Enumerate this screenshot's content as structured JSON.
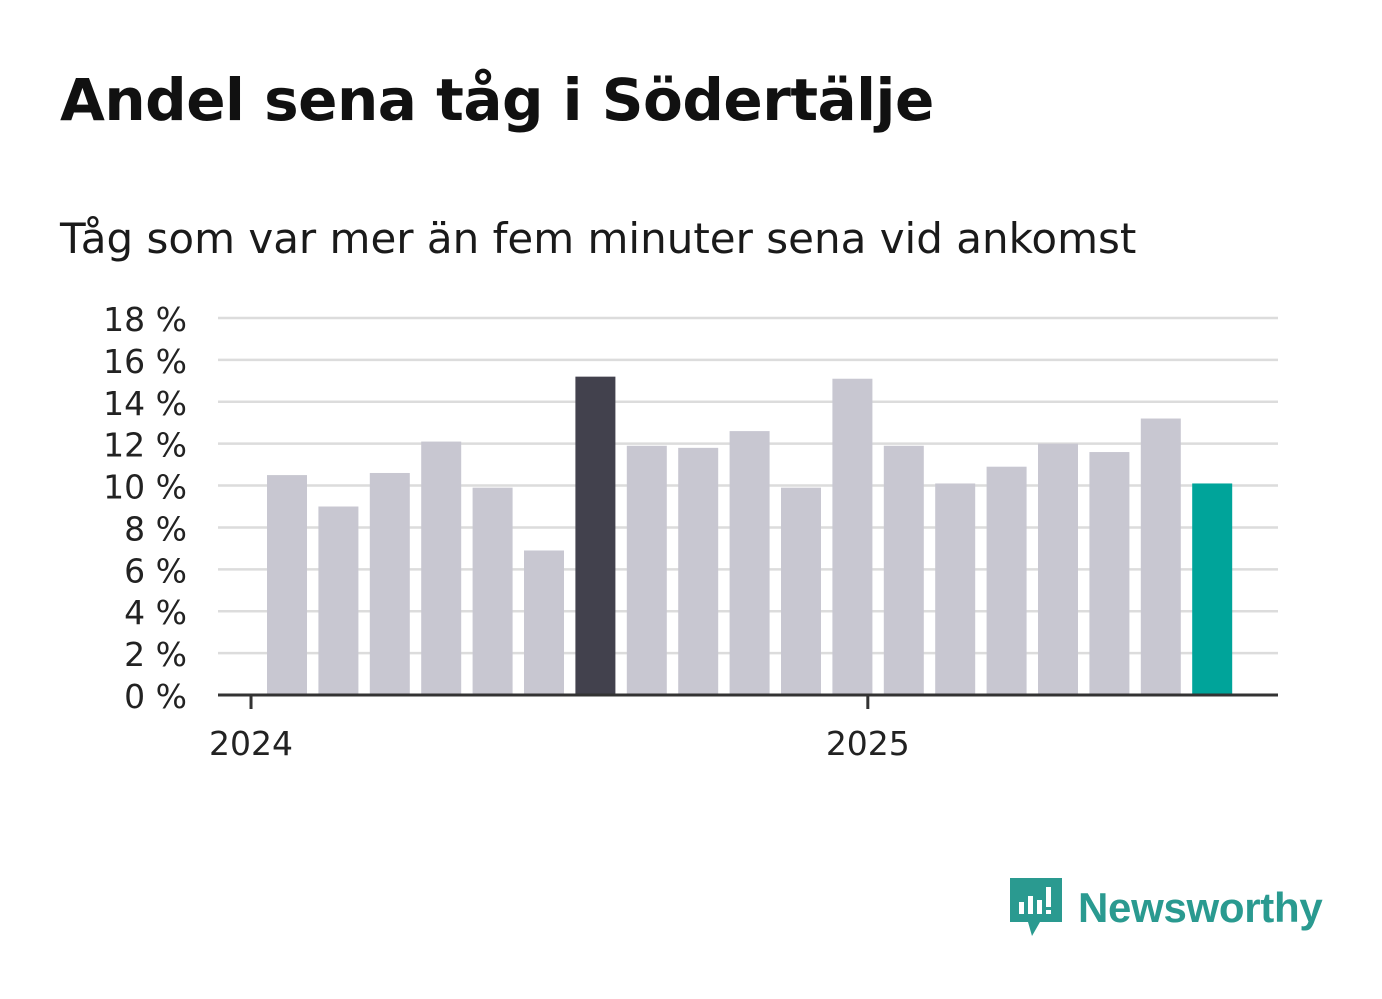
{
  "header": {
    "title": "Andel sena tåg i Södertälje",
    "subtitle": "Tåg som var mer än fem minuter sena vid ankomst"
  },
  "brand": {
    "name": "Newsworthy",
    "color": "#2a9a90"
  },
  "colors": {
    "bar_default": "#c8c7d1",
    "bar_highlight": "#42414d",
    "bar_latest": "#00a49a",
    "grid": "#dcdcdc",
    "axis": "#333333"
  },
  "chart_data": {
    "type": "bar",
    "categories": [
      "2024-01",
      "2024-02",
      "2024-03",
      "2024-04",
      "2024-05",
      "2024-06",
      "2024-07",
      "2024-08",
      "2024-09",
      "2024-10",
      "2024-11",
      "2024-12",
      "2025-01",
      "2025-02",
      "2025-03",
      "2025-04",
      "2025-05",
      "2025-06",
      "2025-07"
    ],
    "values": [
      10.5,
      9.0,
      10.6,
      12.1,
      9.9,
      6.9,
      15.2,
      11.9,
      11.8,
      12.6,
      9.9,
      15.1,
      11.9,
      10.1,
      10.9,
      12.0,
      11.6,
      13.2,
      10.1
    ],
    "highlight": {
      "2024-07": "bar_highlight",
      "2025-07": "bar_latest"
    },
    "y_ticks": [
      0,
      2,
      4,
      6,
      8,
      10,
      12,
      14,
      16,
      18
    ],
    "y_tick_labels": [
      "0 %",
      "2 %",
      "4 %",
      "6 %",
      "8 %",
      "10 %",
      "12 %",
      "14 %",
      "16 %",
      "18 %"
    ],
    "ylim": [
      0,
      18
    ],
    "x_ticks": [
      {
        "label": "2024",
        "at": "2024-01"
      },
      {
        "label": "2025",
        "at": "2025-01"
      }
    ],
    "grid": true,
    "legend": "none"
  }
}
